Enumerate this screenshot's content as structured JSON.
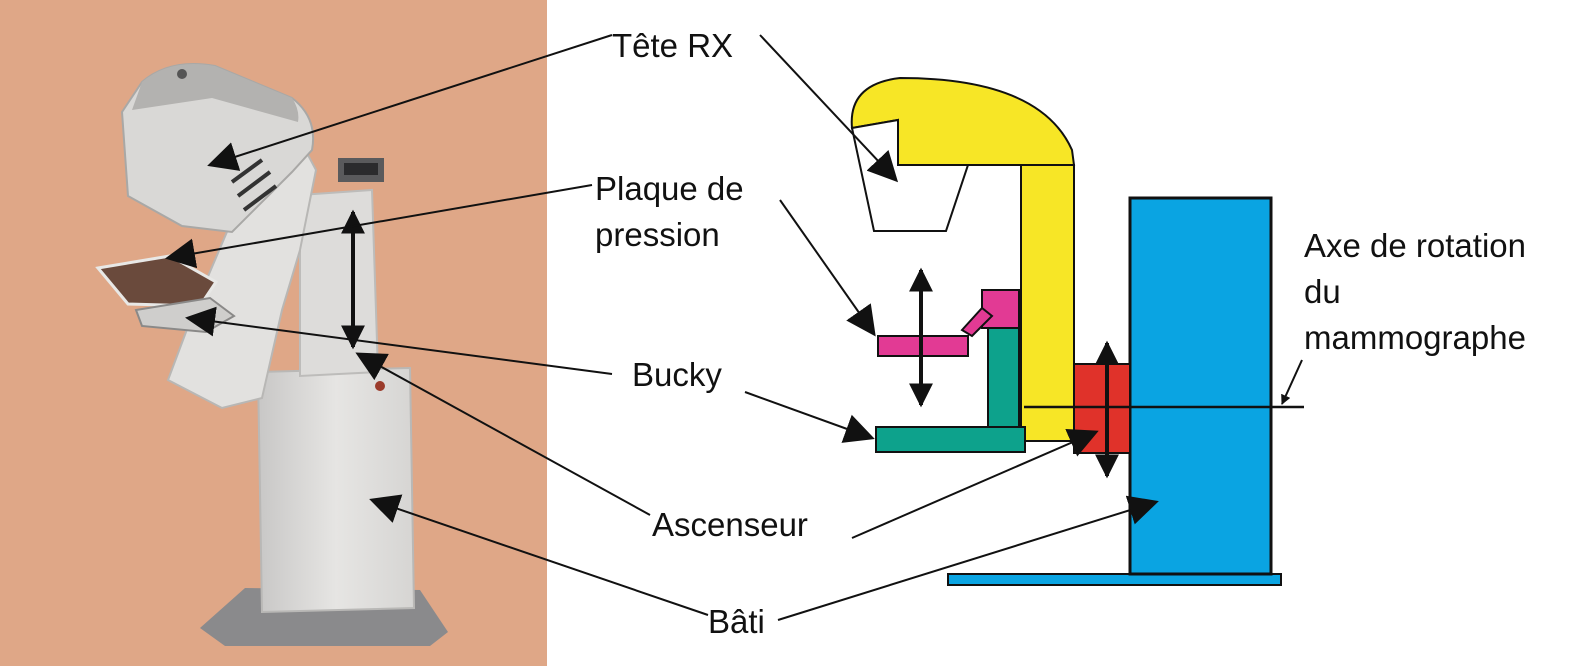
{
  "labels": {
    "tete_rx": "Tête RX",
    "plaque_line1": "Plaque de",
    "plaque_line2": "pression",
    "bucky": "Bucky",
    "ascenseur": "Ascenseur",
    "bati": "Bâti",
    "axe_line1": "Axe de rotation",
    "axe_line2": "du",
    "axe_line3": "mammographe"
  },
  "colors": {
    "photo_background": "#dfa787",
    "tube_head": "#f7e626",
    "compression_plate": "#e23a94",
    "bucky": "#0da28c",
    "elevator": "#e0322a",
    "frame": "#0aa4e2",
    "outline": "#111111"
  }
}
